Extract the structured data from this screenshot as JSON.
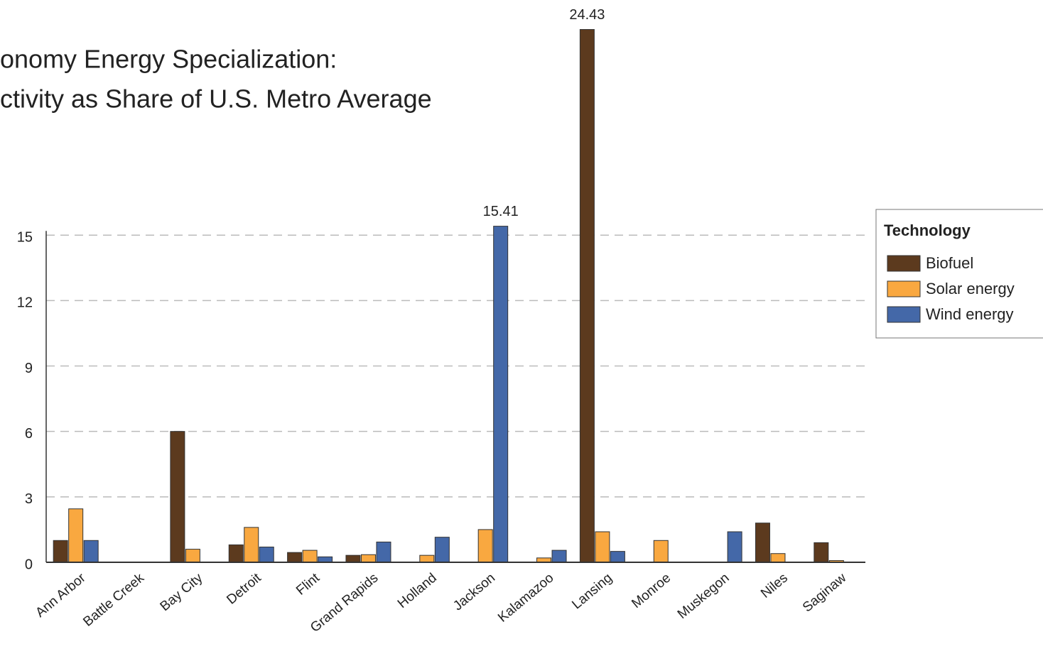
{
  "chart_data": {
    "type": "bar",
    "title": [
      "onomy Energy Specialization:",
      "ctivity as Share of U.S. Metro Average"
    ],
    "categories": [
      "Ann Arbor",
      "Battle Creek",
      "Bay City",
      "Detroit",
      "Flint",
      "Grand Rapids",
      "Holland",
      "Jackson",
      "Kalamazoo",
      "Lansing",
      "Monroe",
      "Muskegon",
      "Niles",
      "Saginaw"
    ],
    "series": [
      {
        "name": "Biofuel",
        "color": "#5c3a1e",
        "values": [
          1.0,
          null,
          6.0,
          0.8,
          0.45,
          0.32,
          null,
          null,
          null,
          24.43,
          null,
          null,
          1.8,
          0.9
        ]
      },
      {
        "name": "Solar energy",
        "color": "#f9a840",
        "values": [
          2.45,
          null,
          0.6,
          1.6,
          0.55,
          0.35,
          0.32,
          1.5,
          0.2,
          1.4,
          1.0,
          null,
          0.4,
          0.08
        ]
      },
      {
        "name": "Wind energy",
        "color": "#4468a8",
        "values": [
          1.0,
          null,
          null,
          0.7,
          0.25,
          0.93,
          1.15,
          15.41,
          0.55,
          0.5,
          null,
          1.4,
          null,
          null
        ]
      }
    ],
    "legend_title": "Technology",
    "ylim": [
      0,
      25
    ],
    "yticks": [
      0,
      3,
      6,
      9,
      12,
      15
    ],
    "grid": true
  }
}
